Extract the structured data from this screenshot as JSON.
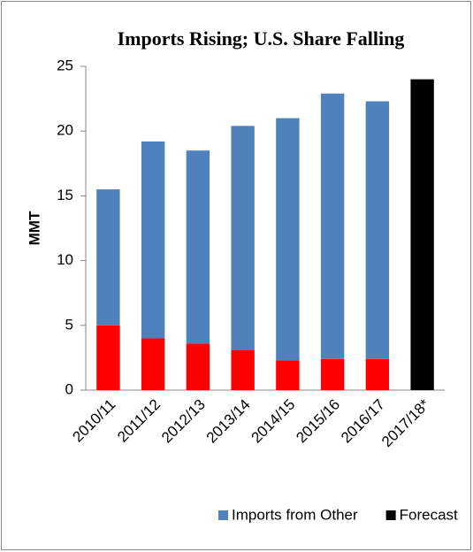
{
  "chart_data": {
    "type": "bar",
    "stacked": true,
    "title": "Imports Rising; U.S. Share Falling",
    "y_label": "MMT",
    "categories": [
      "2010/11",
      "2011/12",
      "2012/13",
      "2013/14",
      "2014/15",
      "2015/16",
      "2016/17",
      "2017/18*"
    ],
    "series": [
      {
        "color": "#ff0000",
        "values": [
          5.0,
          4.0,
          3.6,
          3.1,
          2.3,
          2.4,
          2.4,
          null
        ]
      },
      {
        "name": "Imports from Other",
        "color": "#4f81bd",
        "values": [
          10.5,
          15.2,
          14.9,
          17.3,
          18.7,
          20.5,
          19.9,
          null
        ]
      },
      {
        "name": "Forecast",
        "color": "#000000",
        "values": [
          null,
          null,
          null,
          null,
          null,
          null,
          null,
          24
        ]
      }
    ],
    "ylim": [
      0,
      25
    ],
    "yticks": [
      0,
      5,
      10,
      15,
      20,
      25
    ],
    "grid": false,
    "legend": "bottom"
  }
}
